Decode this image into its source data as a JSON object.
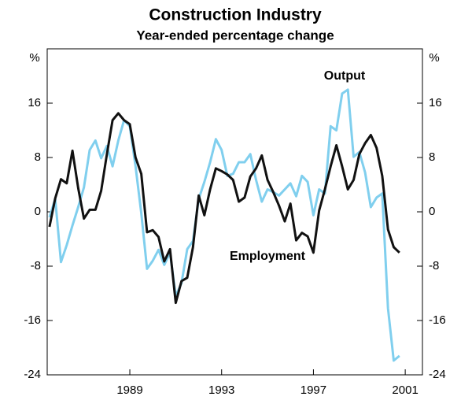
{
  "chart_data": {
    "type": "line",
    "title": "Construction Industry",
    "subtitle": "Year-ended percentage change",
    "y_unit": "%",
    "x": [
      1985.5,
      1985.75,
      1986,
      1986.25,
      1986.5,
      1986.75,
      1987,
      1987.25,
      1987.5,
      1987.75,
      1988,
      1988.25,
      1988.5,
      1988.75,
      1989,
      1989.25,
      1989.5,
      1989.75,
      1990,
      1990.25,
      1990.5,
      1990.75,
      1991,
      1991.25,
      1991.5,
      1991.75,
      1992,
      1992.25,
      1992.5,
      1992.75,
      1993,
      1993.25,
      1993.5,
      1993.75,
      1994,
      1994.25,
      1994.5,
      1994.75,
      1995,
      1995.25,
      1995.5,
      1995.75,
      1996,
      1996.25,
      1996.5,
      1996.75,
      1997,
      1997.25,
      1997.5,
      1997.75,
      1998,
      1998.25,
      1998.5,
      1998.75,
      1999,
      1999.25,
      1999.5,
      1999.75,
      2000,
      2000.25,
      2000.5,
      2000.75
    ],
    "series": [
      {
        "name": "Employment",
        "color": "#111111",
        "values": [
          -2.2,
          2,
          4.8,
          4.2,
          9,
          3.5,
          -1,
          0.3,
          0.3,
          3.1,
          8.5,
          13.5,
          14.5,
          13.5,
          12.9,
          8,
          5.6,
          -3,
          -2.7,
          -3.7,
          -7.3,
          -5.5,
          -13.4,
          -10.2,
          -9.7,
          -5.2,
          2.4,
          -0.5,
          3.3,
          6.4,
          6,
          5.5,
          4.7,
          1.5,
          2.1,
          5.2,
          6.4,
          8.3,
          4.7,
          2.9,
          0.9,
          -1.4,
          1.2,
          -4.2,
          -3.1,
          -3.6,
          -6,
          0.2,
          3.3,
          6.7,
          9.8,
          6.7,
          3.3,
          4.7,
          8.5,
          10.1,
          11.3,
          9.4,
          5.3,
          -2.6,
          -5.2,
          -6
        ]
      },
      {
        "name": "Output",
        "color": "#80cfee",
        "values": [
          -0.8,
          1.9,
          -7.4,
          -4.9,
          -2,
          0.7,
          3.6,
          9.1,
          10.5,
          7.9,
          9.7,
          6.7,
          10.5,
          13.5,
          12.6,
          6.7,
          -0.2,
          -8.4,
          -7.2,
          -5.6,
          -7.8,
          -6,
          -12.4,
          -10.5,
          -5.5,
          -4.3,
          1.9,
          4.4,
          7.3,
          10.7,
          9.1,
          5.3,
          5.6,
          7.3,
          7.3,
          8.5,
          4.7,
          1.5,
          3.3,
          2.9,
          2.4,
          3.3,
          4.2,
          2.3,
          5.3,
          4.4,
          -0.5,
          3.3,
          2.7,
          12.6,
          12,
          17.4,
          18,
          8.1,
          8.8,
          5.8,
          0.7,
          2.1,
          2.7,
          -14.2,
          -21.9,
          -21.2
        ]
      }
    ],
    "xlim": [
      1985.4,
      2001.75
    ],
    "xticks": [
      1989,
      1993,
      1997,
      2001
    ],
    "ylim": [
      -24,
      24
    ],
    "yticks": [
      -24,
      -16,
      -8,
      0,
      8,
      16
    ]
  }
}
